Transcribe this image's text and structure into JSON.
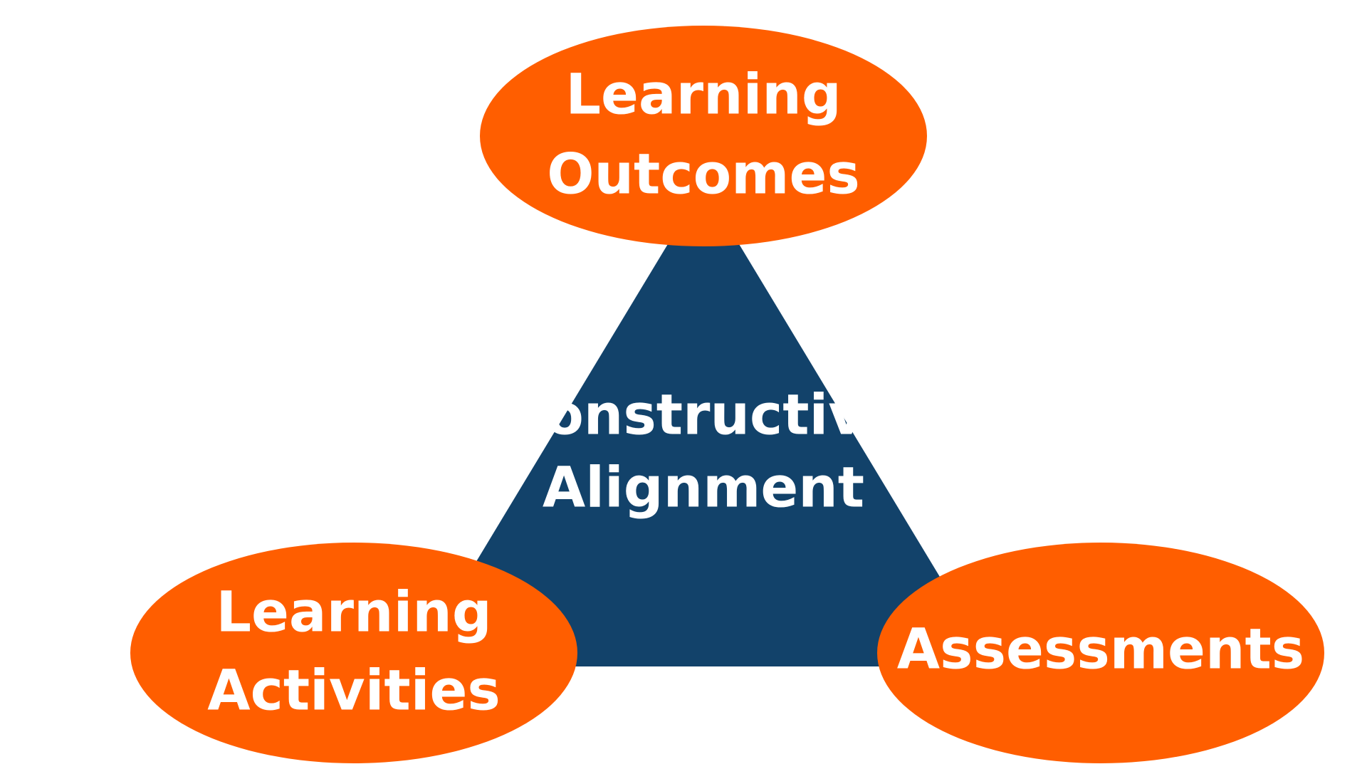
{
  "diagram": {
    "colors": {
      "background": "#ffffff",
      "triangle": "#12426a",
      "node": "#ff5e00",
      "text": "#ffffff"
    },
    "center": {
      "line1": "Constructive",
      "line2": "Alignment"
    },
    "nodes": {
      "top": {
        "line1": "Learning",
        "line2": "Outcomes"
      },
      "left": {
        "line1": "Learning",
        "line2": "Activities"
      },
      "right": {
        "line1": "Assessments"
      }
    }
  }
}
